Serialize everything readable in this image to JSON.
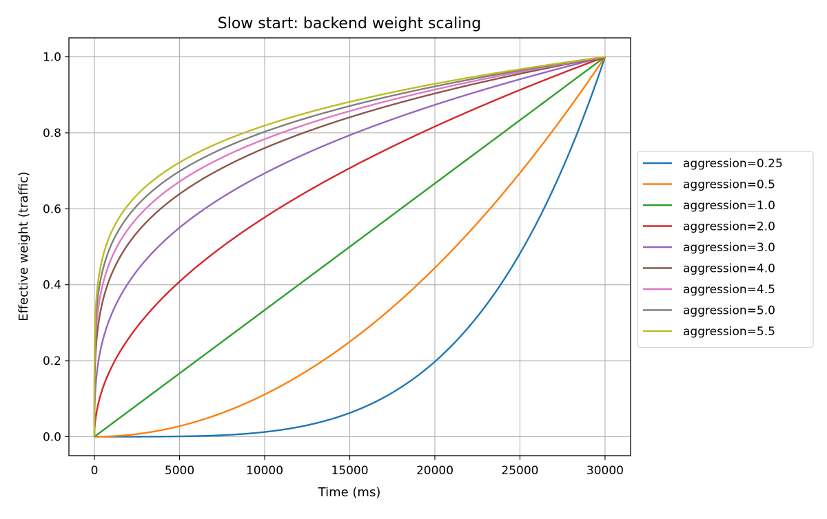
{
  "chart_data": {
    "type": "line",
    "title": "Slow start: backend weight scaling",
    "xlabel": "Time (ms)",
    "ylabel": "Effective weight (traffic)",
    "xlim": [
      -1500,
      31500
    ],
    "ylim": [
      -0.05,
      1.05
    ],
    "xticks": [
      0,
      5000,
      10000,
      15000,
      20000,
      25000,
      30000
    ],
    "yticks": [
      0.0,
      0.2,
      0.4,
      0.6,
      0.8,
      1.0
    ],
    "xtick_labels": [
      "0",
      "5000",
      "10000",
      "15000",
      "20000",
      "25000",
      "30000"
    ],
    "ytick_labels": [
      "0.0",
      "0.2",
      "0.4",
      "0.6",
      "0.8",
      "1.0"
    ],
    "grid": true,
    "legend_position": "outside-right",
    "x_range": [
      0,
      30000
    ],
    "series": [
      {
        "name": "aggression=0.25",
        "aggression": 0.25,
        "color": "#1f77b4"
      },
      {
        "name": "aggression=0.5",
        "aggression": 0.5,
        "color": "#ff7f0e"
      },
      {
        "name": "aggression=1.0",
        "aggression": 1.0,
        "color": "#2ca02c"
      },
      {
        "name": "aggression=2.0",
        "aggression": 2.0,
        "color": "#d62728"
      },
      {
        "name": "aggression=3.0",
        "aggression": 3.0,
        "color": "#9467bd"
      },
      {
        "name": "aggression=4.0",
        "aggression": 4.0,
        "color": "#8c564b"
      },
      {
        "name": "aggression=4.5",
        "aggression": 4.5,
        "color": "#e377c2"
      },
      {
        "name": "aggression=5.0",
        "aggression": 5.0,
        "color": "#7f7f7f"
      },
      {
        "name": "aggression=5.5",
        "aggression": 5.5,
        "color": "#bcbd22"
      }
    ]
  }
}
